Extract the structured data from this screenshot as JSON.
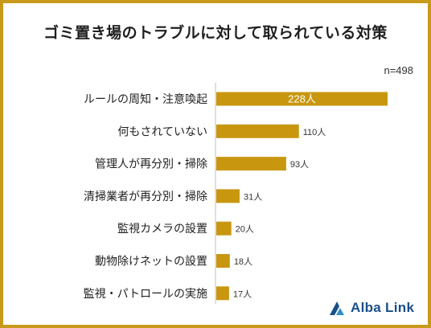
{
  "title": "ゴミ置き場のトラブルに対して取られている対策",
  "sample_size": "n=498",
  "brand": {
    "name": "Alba Link",
    "color": "#1a4f8a"
  },
  "accent_color": "#c8970f",
  "chart_data": {
    "type": "bar",
    "orientation": "horizontal",
    "categories": [
      "ルールの周知・注意喚起",
      "何もされていない",
      "管理人が再分別・掃除",
      "清掃業者が再分別・掃除",
      "監視カメラの設置",
      "動物除けネットの設置",
      "監視・パトロールの実施"
    ],
    "values": [
      228,
      110,
      93,
      31,
      20,
      18,
      17
    ],
    "labels": [
      "228人",
      "110人",
      "93人",
      "31人",
      "20人",
      "18人",
      "17人"
    ],
    "unit": "人",
    "xlim": [
      0,
      228
    ],
    "grid": false,
    "legend": "none"
  }
}
